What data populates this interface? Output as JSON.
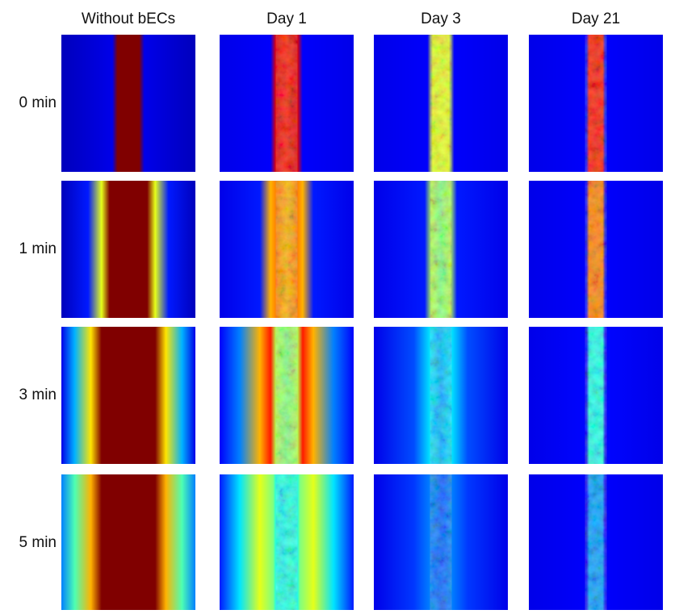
{
  "column_headers": [
    "Without bECs",
    "Day 1",
    "Day 3",
    "Day 21"
  ],
  "row_labels": [
    "0 min",
    "1 min",
    "3 min",
    "5 min"
  ]
}
